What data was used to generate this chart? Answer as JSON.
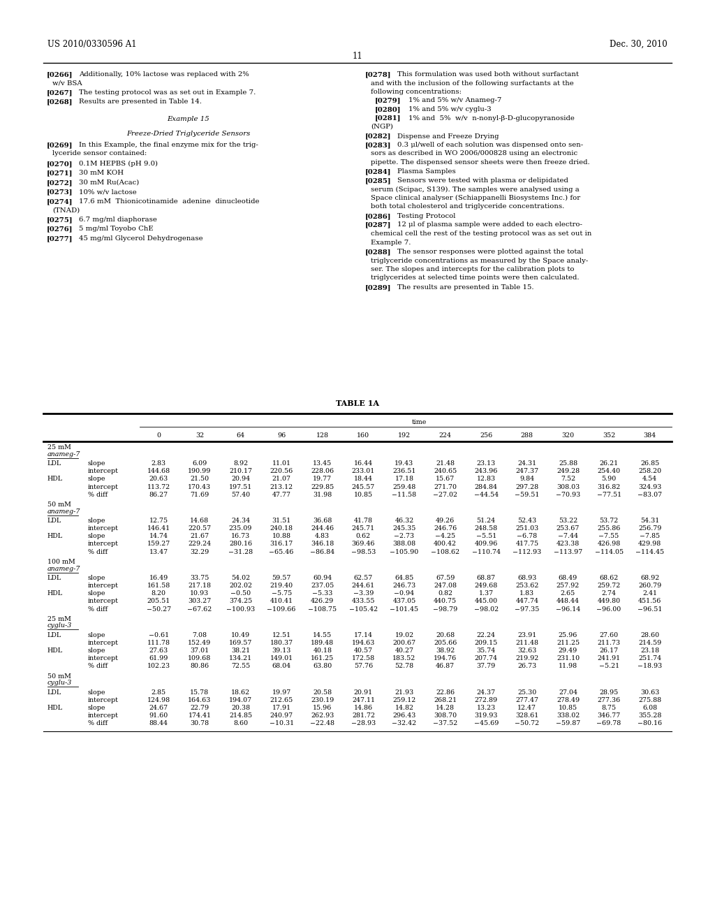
{
  "page_header_left": "US 2010/0330596 A1",
  "page_header_right": "Dec. 30, 2010",
  "page_number": "11",
  "table_title": "TABLE 1A",
  "table_sections": [
    {
      "section_label": "25 mM\nanameg-7",
      "rows": [
        {
          "group": "LDL",
          "metric": "slope",
          "values": [
            "2.83",
            "6.09",
            "8.92",
            "11.01",
            "13.45",
            "16.44",
            "19.43",
            "21.48",
            "23.13",
            "24.31",
            "25.88",
            "26.21",
            "26.85"
          ]
        },
        {
          "group": "",
          "metric": "intercept",
          "values": [
            "144.68",
            "190.99",
            "210.17",
            "220.56",
            "228.06",
            "233.01",
            "236.51",
            "240.65",
            "243.96",
            "247.37",
            "249.28",
            "254.40",
            "258.20"
          ]
        },
        {
          "group": "HDL",
          "metric": "slope",
          "values": [
            "20.63",
            "21.50",
            "20.94",
            "21.07",
            "19.77",
            "18.44",
            "17.18",
            "15.67",
            "12.83",
            "9.84",
            "7.52",
            "5.90",
            "4.54"
          ]
        },
        {
          "group": "",
          "metric": "intercept",
          "values": [
            "113.72",
            "170.43",
            "197.51",
            "213.12",
            "229.85",
            "245.57",
            "259.48",
            "271.70",
            "284.84",
            "297.28",
            "308.03",
            "316.82",
            "324.93"
          ]
        },
        {
          "group": "",
          "metric": "% diff",
          "values": [
            "86.27",
            "71.69",
            "57.40",
            "47.77",
            "31.98",
            "10.85",
            "−11.58",
            "−27.02",
            "−44.54",
            "−59.51",
            "−70.93",
            "−77.51",
            "−83.07"
          ]
        }
      ]
    },
    {
      "section_label": "50 mM\nanameg-7",
      "rows": [
        {
          "group": "LDL",
          "metric": "slope",
          "values": [
            "12.75",
            "14.68",
            "24.34",
            "31.51",
            "36.68",
            "41.78",
            "46.32",
            "49.26",
            "51.24",
            "52.43",
            "53.22",
            "53.72",
            "54.31"
          ]
        },
        {
          "group": "",
          "metric": "intercept",
          "values": [
            "146.41",
            "220.57",
            "235.09",
            "240.18",
            "244.46",
            "245.71",
            "245.35",
            "246.76",
            "248.58",
            "251.03",
            "253.67",
            "255.86",
            "256.79"
          ]
        },
        {
          "group": "HDL",
          "metric": "slope",
          "values": [
            "14.74",
            "21.67",
            "16.73",
            "10.88",
            "4.83",
            "0.62",
            "−2.73",
            "−4.25",
            "−5.51",
            "−6.78",
            "−7.44",
            "−7.55",
            "−7.85"
          ]
        },
        {
          "group": "",
          "metric": "intercept",
          "values": [
            "159.27",
            "229.24",
            "280.16",
            "316.17",
            "346.18",
            "369.46",
            "388.08",
            "400.42",
            "409.96",
            "417.75",
            "423.38",
            "426.98",
            "429.98"
          ]
        },
        {
          "group": "",
          "metric": "% diff",
          "values": [
            "13.47",
            "32.29",
            "−31.28",
            "−65.46",
            "−86.84",
            "−98.53",
            "−105.90",
            "−108.62",
            "−110.74",
            "−112.93",
            "−113.97",
            "−114.05",
            "−114.45"
          ]
        }
      ]
    },
    {
      "section_label": "100 mM\nanameg-7",
      "rows": [
        {
          "group": "LDL",
          "metric": "slope",
          "values": [
            "16.49",
            "33.75",
            "54.02",
            "59.57",
            "60.94",
            "62.57",
            "64.85",
            "67.59",
            "68.87",
            "68.93",
            "68.49",
            "68.62",
            "68.92"
          ]
        },
        {
          "group": "",
          "metric": "intercept",
          "values": [
            "161.58",
            "217.18",
            "202.02",
            "219.40",
            "237.05",
            "244.61",
            "246.73",
            "247.08",
            "249.68",
            "253.62",
            "257.92",
            "259.72",
            "260.79"
          ]
        },
        {
          "group": "HDL",
          "metric": "slope",
          "values": [
            "8.20",
            "10.93",
            "−0.50",
            "−5.75",
            "−5.33",
            "−3.39",
            "−0.94",
            "0.82",
            "1.37",
            "1.83",
            "2.65",
            "2.74",
            "2.41"
          ]
        },
        {
          "group": "",
          "metric": "intercept",
          "values": [
            "205.51",
            "303.27",
            "374.25",
            "410.41",
            "426.29",
            "433.55",
            "437.05",
            "440.75",
            "445.00",
            "447.74",
            "448.44",
            "449.80",
            "451.56"
          ]
        },
        {
          "group": "",
          "metric": "% diff",
          "values": [
            "−50.27",
            "−67.62",
            "−100.93",
            "−109.66",
            "−108.75",
            "−105.42",
            "−101.45",
            "−98.79",
            "−98.02",
            "−97.35",
            "−96.14",
            "−96.00",
            "−96.51"
          ]
        }
      ]
    },
    {
      "section_label": "25 mM\ncyglu-3",
      "rows": [
        {
          "group": "LDL",
          "metric": "slope",
          "values": [
            "−0.61",
            "7.08",
            "10.49",
            "12.51",
            "14.55",
            "17.14",
            "19.02",
            "20.68",
            "22.24",
            "23.91",
            "25.96",
            "27.60",
            "28.60"
          ]
        },
        {
          "group": "",
          "metric": "intercept",
          "values": [
            "111.78",
            "152.49",
            "169.57",
            "180.37",
            "189.48",
            "194.63",
            "200.67",
            "205.66",
            "209.15",
            "211.48",
            "211.25",
            "211.73",
            "214.59"
          ]
        },
        {
          "group": "HDL",
          "metric": "slope",
          "values": [
            "27.63",
            "37.01",
            "38.21",
            "39.13",
            "40.18",
            "40.57",
            "40.27",
            "38.92",
            "35.74",
            "32.63",
            "29.49",
            "26.17",
            "23.18"
          ]
        },
        {
          "group": "",
          "metric": "intercept",
          "values": [
            "61.99",
            "109.68",
            "134.21",
            "149.01",
            "161.25",
            "172.58",
            "183.52",
            "194.76",
            "207.74",
            "219.92",
            "231.10",
            "241.91",
            "251.74"
          ]
        },
        {
          "group": "",
          "metric": "% diff",
          "values": [
            "102.23",
            "80.86",
            "72.55",
            "68.04",
            "63.80",
            "57.76",
            "52.78",
            "46.87",
            "37.79",
            "26.73",
            "11.98",
            "−5.21",
            "−18.93"
          ]
        }
      ]
    },
    {
      "section_label": "50 mM\ncyglu-3",
      "rows": [
        {
          "group": "LDL",
          "metric": "slope",
          "values": [
            "2.85",
            "15.78",
            "18.62",
            "19.97",
            "20.58",
            "20.91",
            "21.93",
            "22.86",
            "24.37",
            "25.30",
            "27.04",
            "28.95",
            "30.63"
          ]
        },
        {
          "group": "",
          "metric": "intercept",
          "values": [
            "124.98",
            "164.63",
            "194.07",
            "212.65",
            "230.19",
            "247.11",
            "259.12",
            "268.21",
            "272.89",
            "277.47",
            "278.49",
            "277.36",
            "275.88"
          ]
        },
        {
          "group": "HDL",
          "metric": "slope",
          "values": [
            "24.67",
            "22.79",
            "20.38",
            "17.91",
            "15.96",
            "14.86",
            "14.82",
            "14.28",
            "13.23",
            "12.47",
            "10.85",
            "8.75",
            "6.08"
          ]
        },
        {
          "group": "",
          "metric": "intercept",
          "values": [
            "91.60",
            "174.41",
            "214.85",
            "240.97",
            "262.93",
            "281.72",
            "296.43",
            "308.70",
            "319.93",
            "328.61",
            "338.02",
            "346.77",
            "355.28"
          ]
        },
        {
          "group": "",
          "metric": "% diff",
          "values": [
            "88.44",
            "30.78",
            "8.60",
            "−10.31",
            "−22.48",
            "−28.93",
            "−32.42",
            "−37.52",
            "−45.69",
            "−50.72",
            "−59.87",
            "−69.78",
            "−80.16"
          ]
        }
      ]
    }
  ],
  "left_paragraphs": [
    {
      "tag": "[0266]",
      "lines": [
        "Additionally, 10% lactose was replaced with 2%",
        "w/v BSA"
      ]
    },
    {
      "tag": "[0267]",
      "lines": [
        "The testing protocol was as set out in Example 7."
      ]
    },
    {
      "tag": "[0268]",
      "lines": [
        "Results are presented in Table 14."
      ]
    },
    {
      "center": "Example 15"
    },
    {
      "center": "Freeze-Dried Triglyceride Sensors"
    },
    {
      "tag": "[0269]",
      "lines": [
        "In this Example, the final enzyme mix for the trig-",
        "lyceride sensor contained:"
      ]
    },
    {
      "tag": "[0270]",
      "lines": [
        "0.1M HEPBS (pH 9.0)"
      ]
    },
    {
      "tag": "[0271]",
      "lines": [
        "30 mM KOH"
      ]
    },
    {
      "tag": "[0272]",
      "lines": [
        "30 mM Ru(Acac)"
      ]
    },
    {
      "tag": "[0273]",
      "lines": [
        "10% w/v lactose"
      ]
    },
    {
      "tag": "[0274]",
      "lines": [
        "17.6 mM  Thionicotinamide  adenine  dinucleotide",
        "(TNAD)"
      ]
    },
    {
      "tag": "[0275]",
      "lines": [
        "6.7 mg/ml diaphorase"
      ]
    },
    {
      "tag": "[0276]",
      "lines": [
        "5 mg/ml Toyobo ChE"
      ]
    },
    {
      "tag": "[0277]",
      "lines": [
        "45 mg/ml Glycerol Dehydrogenase"
      ]
    }
  ],
  "right_paragraphs": [
    {
      "tag": "[0278]",
      "lines": [
        "This formulation was used both without surfactant",
        "and with the inclusion of the following surfactants at the",
        "following concentrations:"
      ]
    },
    {
      "tag": "[0279]",
      "lines": [
        "1% and 5% w/v Anameg-7"
      ],
      "indent": true
    },
    {
      "tag": "[0280]",
      "lines": [
        "1% and 5% w/v cyglu-3"
      ],
      "indent": true
    },
    {
      "tag": "[0281]",
      "lines": [
        "1% and  5%  w/v  n-nonyl-β-D-glucopyranoside",
        "(NGP)"
      ],
      "indent": true
    },
    {
      "tag": "[0282]",
      "lines": [
        "Dispense and Freeze Drying"
      ]
    },
    {
      "tag": "[0283]",
      "lines": [
        "0.3 μl/well of each solution was dispensed onto sen-",
        "sors as described in WO 2006/000828 using an electronic",
        "pipette. The dispensed sensor sheets were then freeze dried."
      ]
    },
    {
      "tag": "[0284]",
      "lines": [
        "Plasma Samples"
      ]
    },
    {
      "tag": "[0285]",
      "lines": [
        "Sensors were tested with plasma or delipidated",
        "serum (Scipac, S139). The samples were analysed using a",
        "Space clinical analyser (Schiappanelli Biosystems Inc.) for",
        "both total cholesterol and triglyceride concentrations."
      ]
    },
    {
      "tag": "[0286]",
      "lines": [
        "Testing Protocol"
      ]
    },
    {
      "tag": "[0287]",
      "lines": [
        "12 μl of plasma sample were added to each electro-",
        "chemical cell the rest of the testing protocol was as set out in",
        "Example 7."
      ]
    },
    {
      "tag": "[0288]",
      "lines": [
        "The sensor responses were plotted against the total",
        "triglyceride concentrations as measured by the Space analy-",
        "ser. The slopes and intercepts for the calibration plots to",
        "triglycerides at selected time points were then calculated."
      ]
    },
    {
      "tag": "[0289]",
      "lines": [
        "The results are presented in Table 15."
      ]
    }
  ],
  "col_headers": [
    "0",
    "32",
    "64",
    "96",
    "128",
    "160",
    "192",
    "224",
    "256",
    "288",
    "320",
    "352",
    "384"
  ]
}
